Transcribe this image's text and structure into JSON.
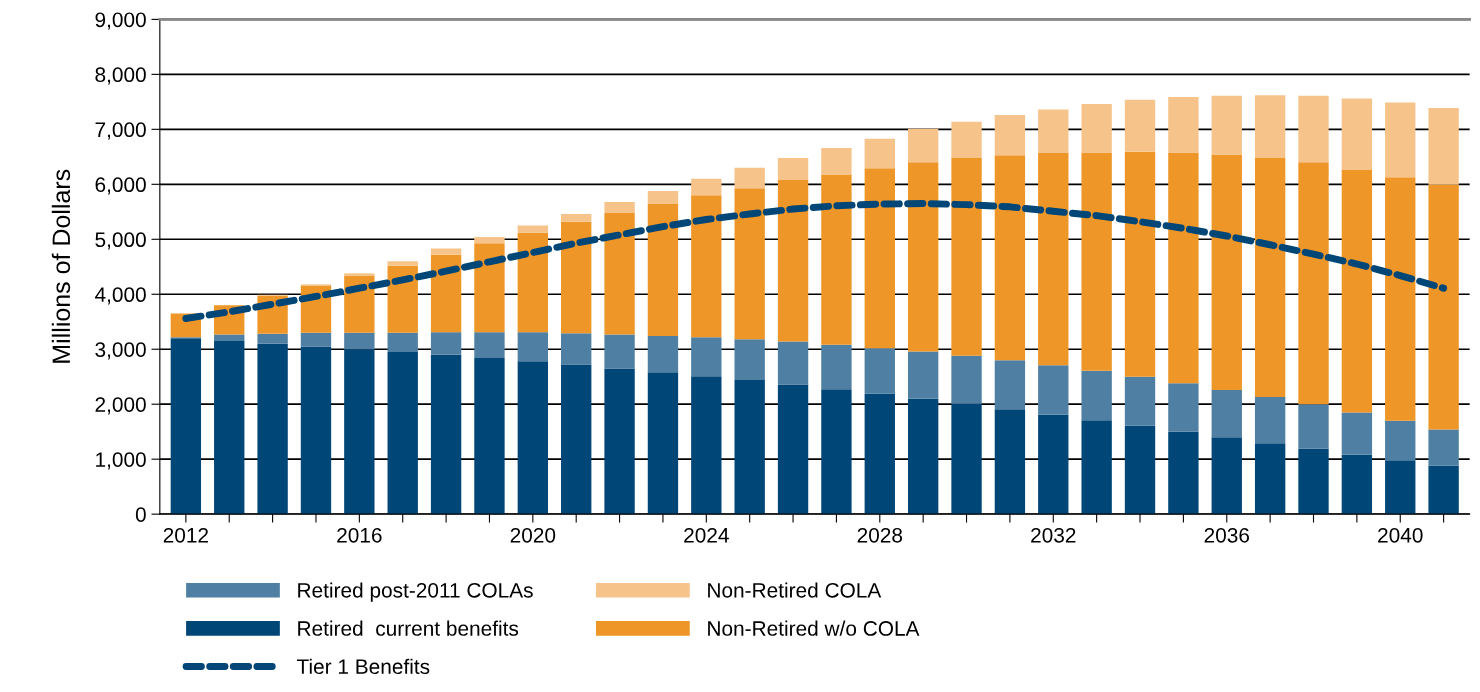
{
  "chart_data": {
    "type": "bar",
    "stacked": true,
    "ylabel": "Millions of Dollars",
    "categories": [
      "2012",
      null,
      null,
      null,
      "2016",
      null,
      null,
      null,
      "2020",
      null,
      null,
      null,
      "2024",
      null,
      null,
      null,
      "2028",
      null,
      null,
      null,
      "2032",
      null,
      null,
      null,
      "2036",
      null,
      null,
      null,
      "2040",
      null
    ],
    "series": [
      {
        "name": "Retired  current benefits",
        "color": "#004677",
        "values": [
          3200,
          3150,
          3100,
          3050,
          3000,
          2950,
          2900,
          2840,
          2780,
          2720,
          2650,
          2580,
          2510,
          2440,
          2360,
          2270,
          2190,
          2100,
          2010,
          1910,
          1810,
          1710,
          1610,
          1500,
          1400,
          1290,
          1190,
          1080,
          980,
          880
        ]
      },
      {
        "name": "Retired post-2011 COLAs",
        "color": "#4f7fa3",
        "values": [
          20,
          120,
          180,
          250,
          300,
          350,
          410,
          470,
          530,
          570,
          620,
          660,
          710,
          740,
          780,
          810,
          830,
          860,
          870,
          890,
          900,
          900,
          890,
          880,
          860,
          840,
          810,
          770,
          720,
          660
        ]
      },
      {
        "name": "Non-Retired w/o COLA",
        "color": "#ee9628",
        "values": [
          430,
          530,
          690,
          850,
          1030,
          1220,
          1410,
          1620,
          1810,
          2030,
          2210,
          2410,
          2580,
          2750,
          2940,
          3100,
          3270,
          3440,
          3600,
          3730,
          3860,
          3970,
          4090,
          4200,
          4280,
          4350,
          4400,
          4410,
          4430,
          4450
        ]
      },
      {
        "name": "Non-Retired COLA",
        "color": "#f6c48a",
        "values": [
          0,
          null,
          20,
          30,
          50,
          80,
          110,
          110,
          130,
          140,
          200,
          230,
          300,
          370,
          400,
          480,
          540,
          610,
          660,
          730,
          790,
          880,
          950,
          1010,
          1070,
          1140,
          1210,
          1300,
          1360,
          1400
        ]
      },
      {
        "name": "Tier 1 Benefits",
        "type": "line",
        "line_style": "dashed",
        "color": "#004677",
        "values": [
          3560,
          3680,
          3820,
          3960,
          4110,
          4260,
          4420,
          4590,
          4760,
          4930,
          5080,
          5230,
          5360,
          5460,
          5550,
          5610,
          5640,
          5650,
          5630,
          5590,
          5510,
          5430,
          5320,
          5200,
          5060,
          4900,
          4730,
          4550,
          4340,
          4110
        ]
      }
    ],
    "ylim": [
      0,
      9000
    ],
    "yticks": [
      0,
      {
        "value": 1000,
        "label": "1,000"
      },
      {
        "value": 2000,
        "label": "2,000"
      },
      {
        "value": 3000,
        "label": "3,000"
      },
      {
        "value": 4000,
        "label": "4,000"
      },
      {
        "value": 5000,
        "label": "5,000"
      },
      {
        "value": 6000,
        "label": "6,000"
      },
      {
        "value": 7000,
        "label": "7,000"
      },
      {
        "value": 8000,
        "label": "8,000"
      },
      {
        "value": 9000,
        "label": "9,000"
      }
    ],
    "grid": "y",
    "legend": "bottom"
  }
}
